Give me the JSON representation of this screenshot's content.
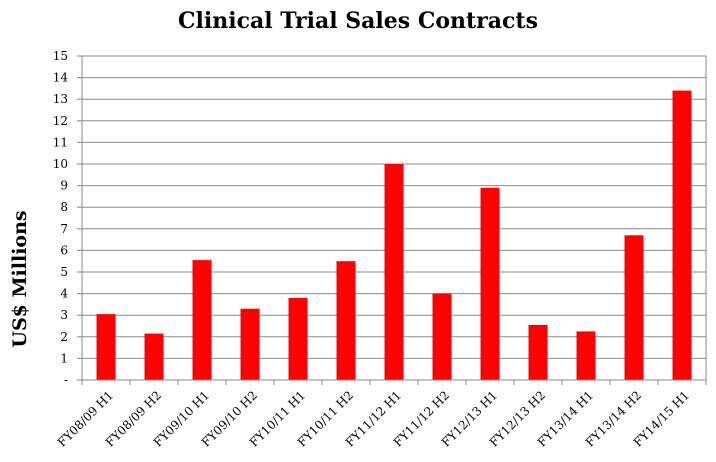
{
  "chart_data": {
    "type": "bar",
    "title": "Clinical Trial Sales Contracts",
    "xlabel": "",
    "ylabel": "US$ Millions",
    "categories": [
      "FY08/09 H1",
      "FY08/09 H2",
      "FY09/10 H1",
      "FY09/10 H2",
      "FY10/11 H1",
      "FY10/11 H2",
      "FY11/12 H1",
      "FY11/12 H2",
      "FY12/13 H1",
      "FY12/13 H2",
      "FY13/14 H1",
      "FY13/14 H2",
      "FY14/15 H1"
    ],
    "values": [
      3.05,
      2.15,
      5.55,
      3.3,
      3.8,
      5.5,
      10.0,
      4.0,
      8.9,
      2.55,
      2.25,
      6.7,
      13.4
    ],
    "ylim": [
      0,
      15
    ],
    "yticks": [
      "-",
      "1",
      "2",
      "3",
      "4",
      "5",
      "6",
      "7",
      "8",
      "9",
      "10",
      "11",
      "12",
      "13",
      "14",
      "15"
    ],
    "grid": true,
    "bar_color": "#ff0000"
  }
}
